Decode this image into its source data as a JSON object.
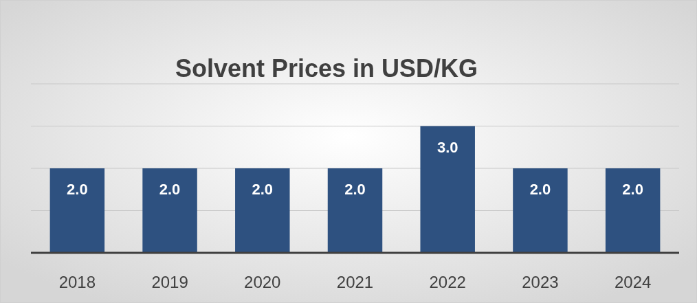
{
  "chart_data": {
    "type": "bar",
    "title": "Solvent Prices in USD/KG",
    "categories": [
      "2018",
      "2019",
      "2020",
      "2021",
      "2022",
      "2023",
      "2024"
    ],
    "values": [
      2.0,
      2.0,
      2.0,
      2.0,
      3.0,
      2.0,
      2.0
    ],
    "value_labels": [
      "2.0",
      "2.0",
      "2.0",
      "2.0",
      "3.0",
      "2.0",
      "2.0"
    ],
    "color": "#2e5180",
    "ylim": [
      0,
      4
    ],
    "yticks": [
      {
        "value": 0,
        "label": null
      },
      {
        "value": 1,
        "label": null
      },
      {
        "value": 2,
        "label": null
      },
      {
        "value": 3,
        "label": null
      },
      {
        "value": 4,
        "label": null
      }
    ],
    "grid": "y",
    "tick_labels": "x"
  }
}
